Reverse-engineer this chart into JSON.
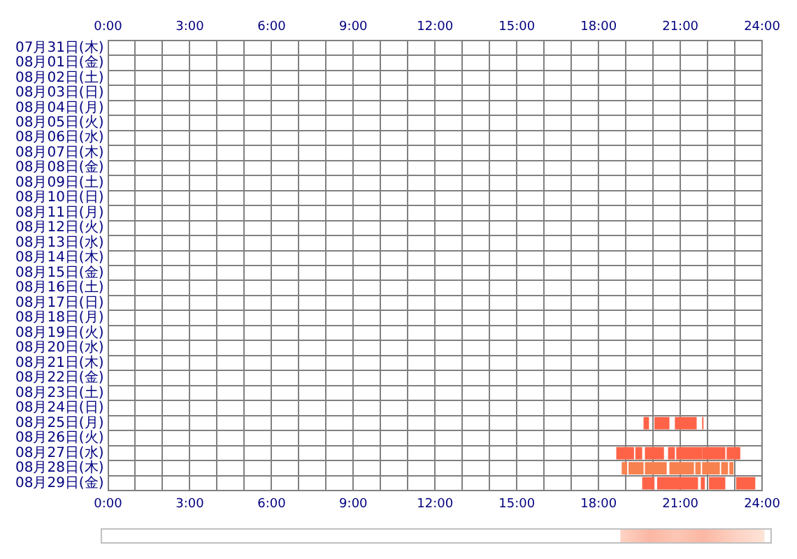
{
  "chart_data": {
    "type": "bar",
    "orientation": "horizontal",
    "stacked": false,
    "grid": true,
    "legend": false,
    "categories": [
      "07月31日(木)",
      "08月01日(金)",
      "08月02日(土)",
      "08月03日(日)",
      "08月04日(月)",
      "08月05日(火)",
      "08月06日(水)",
      "08月07日(木)",
      "08月08日(金)",
      "08月09日(土)",
      "08月10日(日)",
      "08月11日(月)",
      "08月12日(火)",
      "08月13日(水)",
      "08月14日(木)",
      "08月15日(金)",
      "08月16日(土)",
      "08月17日(日)",
      "08月18日(月)",
      "08月19日(火)",
      "08月20日(水)",
      "08月21日(木)",
      "08月22日(金)",
      "08月23日(土)",
      "08月24日(日)",
      "08月25日(月)",
      "08月26日(火)",
      "08月27日(水)",
      "08月28日(木)",
      "08月29日(金)"
    ],
    "xlim": [
      0,
      24
    ],
    "xticks": [
      {
        "value": 0,
        "label": "0:00"
      },
      {
        "value": 1,
        "label": null
      },
      {
        "value": 2,
        "label": null
      },
      {
        "value": 3,
        "label": "3:00"
      },
      {
        "value": 4,
        "label": null
      },
      {
        "value": 5,
        "label": null
      },
      {
        "value": 6,
        "label": "6:00"
      },
      {
        "value": 7,
        "label": null
      },
      {
        "value": 8,
        "label": null
      },
      {
        "value": 9,
        "label": "9:00"
      },
      {
        "value": 10,
        "label": null
      },
      {
        "value": 11,
        "label": null
      },
      {
        "value": 12,
        "label": "12:00"
      },
      {
        "value": 13,
        "label": null
      },
      {
        "value": 14,
        "label": null
      },
      {
        "value": 15,
        "label": "15:00"
      },
      {
        "value": 16,
        "label": null
      },
      {
        "value": 17,
        "label": null
      },
      {
        "value": 18,
        "label": "18:00"
      },
      {
        "value": 19,
        "label": null
      },
      {
        "value": 20,
        "label": null
      },
      {
        "value": 21,
        "label": "21:00"
      },
      {
        "value": 22,
        "label": null
      },
      {
        "value": 23,
        "label": null
      },
      {
        "value": 24,
        "label": "24:00"
      }
    ],
    "x2lim": [
      0,
      24
    ],
    "x2ticks": [
      {
        "value": 0,
        "label": "0:00"
      },
      {
        "value": 1,
        "label": null
      },
      {
        "value": 2,
        "label": null
      },
      {
        "value": 3,
        "label": "3:00"
      },
      {
        "value": 4,
        "label": null
      },
      {
        "value": 5,
        "label": null
      },
      {
        "value": 6,
        "label": "6:00"
      },
      {
        "value": 7,
        "label": null
      },
      {
        "value": 8,
        "label": null
      },
      {
        "value": 9,
        "label": "9:00"
      },
      {
        "value": 10,
        "label": null
      },
      {
        "value": 11,
        "label": null
      },
      {
        "value": 12,
        "label": "12:00"
      },
      {
        "value": 13,
        "label": null
      },
      {
        "value": 14,
        "label": null
      },
      {
        "value": 15,
        "label": "15:00"
      },
      {
        "value": 16,
        "label": null
      },
      {
        "value": 17,
        "label": null
      },
      {
        "value": 18,
        "label": "18:00"
      },
      {
        "value": 19,
        "label": null
      },
      {
        "value": 20,
        "label": null
      },
      {
        "value": 21,
        "label": "21:00"
      },
      {
        "value": 22,
        "label": null
      },
      {
        "value": 23,
        "label": null
      },
      {
        "value": 24,
        "label": "24:00"
      }
    ],
    "series": [
      {
        "colors": [
          null,
          null,
          null,
          null,
          null,
          null,
          null,
          null,
          null,
          null,
          null,
          null,
          null,
          null,
          null,
          null,
          null,
          null,
          null,
          null,
          null,
          null,
          null,
          null,
          null,
          "#ff6347",
          null,
          "#ff6347",
          "#f7814f",
          "#ff6347"
        ],
        "base": [
          null,
          null,
          null,
          null,
          null,
          null,
          null,
          null,
          null,
          null,
          null,
          null,
          null,
          null,
          null,
          null,
          null,
          null,
          null,
          null,
          null,
          null,
          null,
          null,
          null,
          19.65,
          null,
          18.65,
          18.85,
          19.6
        ],
        "values": [
          null,
          null,
          null,
          null,
          null,
          null,
          null,
          null,
          null,
          null,
          null,
          null,
          null,
          null,
          null,
          null,
          null,
          null,
          null,
          null,
          null,
          null,
          null,
          null,
          null,
          0.2,
          null,
          0.65,
          0.2,
          0.45
        ]
      },
      {
        "colors": [
          null,
          null,
          null,
          null,
          null,
          null,
          null,
          null,
          null,
          null,
          null,
          null,
          null,
          null,
          null,
          null,
          null,
          null,
          null,
          null,
          null,
          null,
          null,
          null,
          null,
          "#ff6347",
          null,
          "#ff6347",
          "#f7814f",
          "#ff6347"
        ],
        "base": [
          null,
          null,
          null,
          null,
          null,
          null,
          null,
          null,
          null,
          null,
          null,
          null,
          null,
          null,
          null,
          null,
          null,
          null,
          null,
          null,
          null,
          null,
          null,
          null,
          null,
          20.05,
          null,
          19.35,
          19.1,
          20.15
        ],
        "values": [
          null,
          null,
          null,
          null,
          null,
          null,
          null,
          null,
          null,
          null,
          null,
          null,
          null,
          null,
          null,
          null,
          null,
          null,
          null,
          null,
          null,
          null,
          null,
          null,
          null,
          0.55,
          null,
          0.25,
          0.55,
          1.5
        ]
      },
      {
        "colors": [
          null,
          null,
          null,
          null,
          null,
          null,
          null,
          null,
          null,
          null,
          null,
          null,
          null,
          null,
          null,
          null,
          null,
          null,
          null,
          null,
          null,
          null,
          null,
          null,
          null,
          "#ff6347",
          null,
          "#ff6347",
          "#f7814f",
          "#ff6347"
        ],
        "base": [
          null,
          null,
          null,
          null,
          null,
          null,
          null,
          null,
          null,
          null,
          null,
          null,
          null,
          null,
          null,
          null,
          null,
          null,
          null,
          null,
          null,
          null,
          null,
          null,
          null,
          20.8,
          null,
          19.7,
          19.7,
          21.75
        ],
        "values": [
          null,
          null,
          null,
          null,
          null,
          null,
          null,
          null,
          null,
          null,
          null,
          null,
          null,
          null,
          null,
          null,
          null,
          null,
          null,
          null,
          null,
          null,
          null,
          null,
          null,
          0.8,
          null,
          0.7,
          0.8,
          0.15
        ]
      },
      {
        "colors": [
          null,
          null,
          null,
          null,
          null,
          null,
          null,
          null,
          null,
          null,
          null,
          null,
          null,
          null,
          null,
          null,
          null,
          null,
          null,
          null,
          null,
          null,
          null,
          null,
          null,
          "#ff6347",
          null,
          "#ff6347",
          "#f7814f",
          "#ff6347"
        ],
        "base": [
          null,
          null,
          null,
          null,
          null,
          null,
          null,
          null,
          null,
          null,
          null,
          null,
          null,
          null,
          null,
          null,
          null,
          null,
          null,
          null,
          null,
          null,
          null,
          null,
          null,
          21.8,
          null,
          20.55,
          20.6,
          22.05
        ],
        "values": [
          null,
          null,
          null,
          null,
          null,
          null,
          null,
          null,
          null,
          null,
          null,
          null,
          null,
          null,
          null,
          null,
          null,
          null,
          null,
          null,
          null,
          null,
          null,
          null,
          null,
          0.05,
          null,
          0.25,
          0.9,
          0.6
        ]
      },
      {
        "colors": [
          null,
          null,
          null,
          null,
          null,
          null,
          null,
          null,
          null,
          null,
          null,
          null,
          null,
          null,
          null,
          null,
          null,
          null,
          null,
          null,
          null,
          null,
          null,
          null,
          null,
          null,
          null,
          "#ff6347",
          "#f7814f",
          "#ff6347"
        ],
        "base": [
          null,
          null,
          null,
          null,
          null,
          null,
          null,
          null,
          null,
          null,
          null,
          null,
          null,
          null,
          null,
          null,
          null,
          null,
          null,
          null,
          null,
          null,
          null,
          null,
          null,
          null,
          null,
          20.85,
          21.55,
          23.05
        ],
        "values": [
          null,
          null,
          null,
          null,
          null,
          null,
          null,
          null,
          null,
          null,
          null,
          null,
          null,
          null,
          null,
          null,
          null,
          null,
          null,
          null,
          null,
          null,
          null,
          null,
          null,
          null,
          null,
          0.95,
          0.2,
          0.7
        ]
      },
      {
        "colors": [
          null,
          null,
          null,
          null,
          null,
          null,
          null,
          null,
          null,
          null,
          null,
          null,
          null,
          null,
          null,
          null,
          null,
          null,
          null,
          null,
          null,
          null,
          null,
          null,
          null,
          null,
          null,
          "#ff6347",
          "#f7814f",
          null
        ],
        "base": [
          null,
          null,
          null,
          null,
          null,
          null,
          null,
          null,
          null,
          null,
          null,
          null,
          null,
          null,
          null,
          null,
          null,
          null,
          null,
          null,
          null,
          null,
          null,
          null,
          null,
          null,
          null,
          21.8,
          21.8,
          null
        ],
        "values": [
          null,
          null,
          null,
          null,
          null,
          null,
          null,
          null,
          null,
          null,
          null,
          null,
          null,
          null,
          null,
          null,
          null,
          null,
          null,
          null,
          null,
          null,
          null,
          null,
          null,
          null,
          null,
          0.85,
          0.65,
          null
        ]
      },
      {
        "colors": [
          null,
          null,
          null,
          null,
          null,
          null,
          null,
          null,
          null,
          null,
          null,
          null,
          null,
          null,
          null,
          null,
          null,
          null,
          null,
          null,
          null,
          null,
          null,
          null,
          null,
          null,
          null,
          "#ff6347",
          "#f7814f",
          null
        ],
        "base": [
          null,
          null,
          null,
          null,
          null,
          null,
          null,
          null,
          null,
          null,
          null,
          null,
          null,
          null,
          null,
          null,
          null,
          null,
          null,
          null,
          null,
          null,
          null,
          null,
          null,
          null,
          null,
          22.7,
          22.5,
          null
        ],
        "values": [
          null,
          null,
          null,
          null,
          null,
          null,
          null,
          null,
          null,
          null,
          null,
          null,
          null,
          null,
          null,
          null,
          null,
          null,
          null,
          null,
          null,
          null,
          null,
          null,
          null,
          null,
          null,
          0.5,
          0.25,
          null
        ]
      },
      {
        "colors": [
          null,
          null,
          null,
          null,
          null,
          null,
          null,
          null,
          null,
          null,
          null,
          null,
          null,
          null,
          null,
          null,
          null,
          null,
          null,
          null,
          null,
          null,
          null,
          null,
          null,
          null,
          null,
          null,
          "#f7814f",
          null
        ],
        "base": [
          null,
          null,
          null,
          null,
          null,
          null,
          null,
          null,
          null,
          null,
          null,
          null,
          null,
          null,
          null,
          null,
          null,
          null,
          null,
          null,
          null,
          null,
          null,
          null,
          null,
          null,
          null,
          null,
          22.8,
          null
        ],
        "values": [
          null,
          null,
          null,
          null,
          null,
          null,
          null,
          null,
          null,
          null,
          null,
          null,
          null,
          null,
          null,
          null,
          null,
          null,
          null,
          null,
          null,
          null,
          null,
          null,
          null,
          null,
          null,
          null,
          0.15,
          null
        ]
      }
    ]
  }
}
